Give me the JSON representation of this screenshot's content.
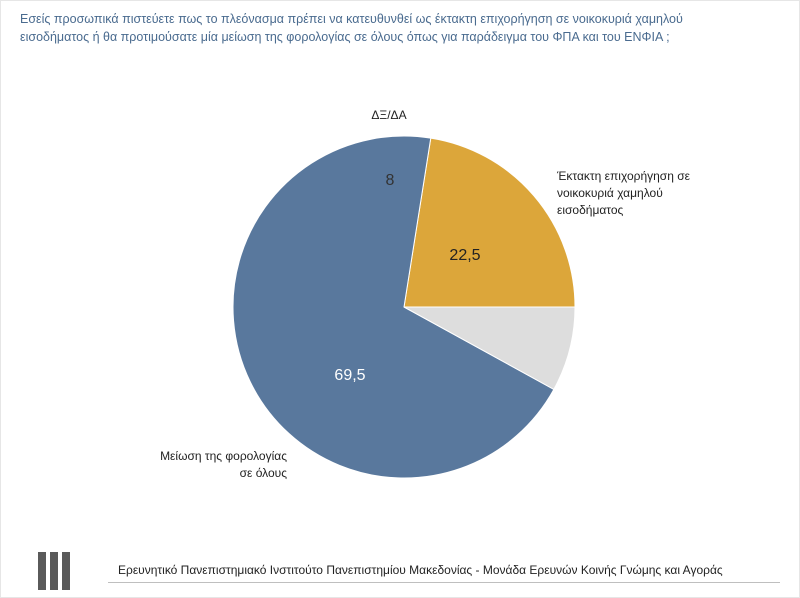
{
  "question": "Εσείς προσωπικά πιστεύετε πως το πλεόνασμα πρέπει να κατευθυνθεί ως έκτακτη επιχορήγηση σε νοικοκυριά χαμηλού\nεισοδήματος ή θα προτιμούσατε μία μείωση της φορολογίας σε όλους όπως για παράδειγμα του ΦΠΑ και του ΕΝΦΙΑ ;",
  "chart_data": {
    "type": "pie",
    "title": "",
    "slices": [
      {
        "label": "Έκτακτη επιχορήγηση σε νοικοκυριά χαμηλού εισοδήματος",
        "label_lines": [
          "Έκτακτη επιχορήγηση σε",
          "νοικοκυριά χαμηλού",
          "εισοδήματος"
        ],
        "value": 22.5,
        "value_text": "22,5",
        "color": "#dca63a"
      },
      {
        "label": "Μείωση της φορολογίας σε όλους",
        "label_lines": [
          "Μείωση της φορολογίας",
          "σε όλους"
        ],
        "value": 69.5,
        "value_text": "69,5",
        "color": "#59789d"
      },
      {
        "label": "ΔΞ/ΔΑ",
        "label_lines": [
          "ΔΞ/ΔΑ"
        ],
        "value": 8,
        "value_text": "8",
        "color": "#dddddd"
      }
    ],
    "legend": "none",
    "start": "3 o'clock, counter-clockwise"
  },
  "footer": {
    "text": "Ερευνητικό Πανεπιστημιακό Ινστιτούτο Πανεπιστημίου Μακεδονίας - Μονάδα Ερευνών Κοινής Γνώμης και Αγοράς"
  }
}
